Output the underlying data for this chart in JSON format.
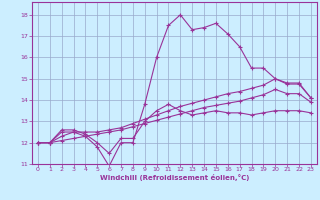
{
  "xlabel": "Windchill (Refroidissement éolien,°C)",
  "bg_color": "#cceeff",
  "line_color": "#993399",
  "grid_color": "#99aacc",
  "xlim": [
    -0.5,
    23.5
  ],
  "ylim": [
    11,
    18.6
  ],
  "yticks": [
    11,
    12,
    13,
    14,
    15,
    16,
    17,
    18
  ],
  "xticks": [
    0,
    1,
    2,
    3,
    4,
    5,
    6,
    7,
    8,
    9,
    10,
    11,
    12,
    13,
    14,
    15,
    16,
    17,
    18,
    19,
    20,
    21,
    22,
    23
  ],
  "series": [
    {
      "x": [
        0,
        1,
        2,
        3,
        4,
        5,
        6,
        7,
        8,
        9,
        10,
        11,
        12,
        13,
        14,
        15,
        16,
        17,
        18,
        19,
        20,
        21,
        22,
        23
      ],
      "y": [
        12.0,
        12.0,
        12.5,
        12.5,
        12.3,
        11.8,
        10.9,
        12.0,
        12.0,
        13.8,
        16.0,
        17.5,
        18.0,
        17.3,
        17.4,
        17.6,
        17.1,
        16.5,
        15.5,
        15.5,
        15.0,
        14.8,
        14.8,
        14.1
      ]
    },
    {
      "x": [
        0,
        1,
        2,
        3,
        4,
        5,
        6,
        7,
        8,
        9,
        10,
        11,
        12,
        13,
        14,
        15,
        16,
        17,
        18,
        19,
        20,
        21,
        22,
        23
      ],
      "y": [
        12.0,
        12.0,
        12.3,
        12.5,
        12.5,
        12.5,
        12.6,
        12.7,
        12.9,
        13.1,
        13.3,
        13.5,
        13.7,
        13.85,
        14.0,
        14.15,
        14.3,
        14.4,
        14.55,
        14.7,
        15.0,
        14.75,
        14.75,
        14.1
      ]
    },
    {
      "x": [
        0,
        1,
        2,
        3,
        4,
        5,
        6,
        7,
        8,
        9,
        10,
        11,
        12,
        13,
        14,
        15,
        16,
        17,
        18,
        19,
        20,
        21,
        22,
        23
      ],
      "y": [
        12.0,
        12.0,
        12.1,
        12.2,
        12.3,
        12.4,
        12.5,
        12.6,
        12.75,
        12.9,
        13.05,
        13.2,
        13.35,
        13.5,
        13.65,
        13.75,
        13.85,
        13.95,
        14.1,
        14.25,
        14.5,
        14.3,
        14.3,
        13.9
      ]
    },
    {
      "x": [
        0,
        1,
        2,
        3,
        4,
        5,
        6,
        7,
        8,
        9,
        10,
        11,
        12,
        13,
        14,
        15,
        16,
        17,
        18,
        19,
        20,
        21,
        22,
        23
      ],
      "y": [
        12.0,
        12.0,
        12.6,
        12.6,
        12.4,
        12.0,
        11.5,
        12.2,
        12.2,
        13.0,
        13.5,
        13.8,
        13.5,
        13.3,
        13.4,
        13.5,
        13.4,
        13.4,
        13.3,
        13.4,
        13.5,
        13.5,
        13.5,
        13.4
      ]
    }
  ]
}
